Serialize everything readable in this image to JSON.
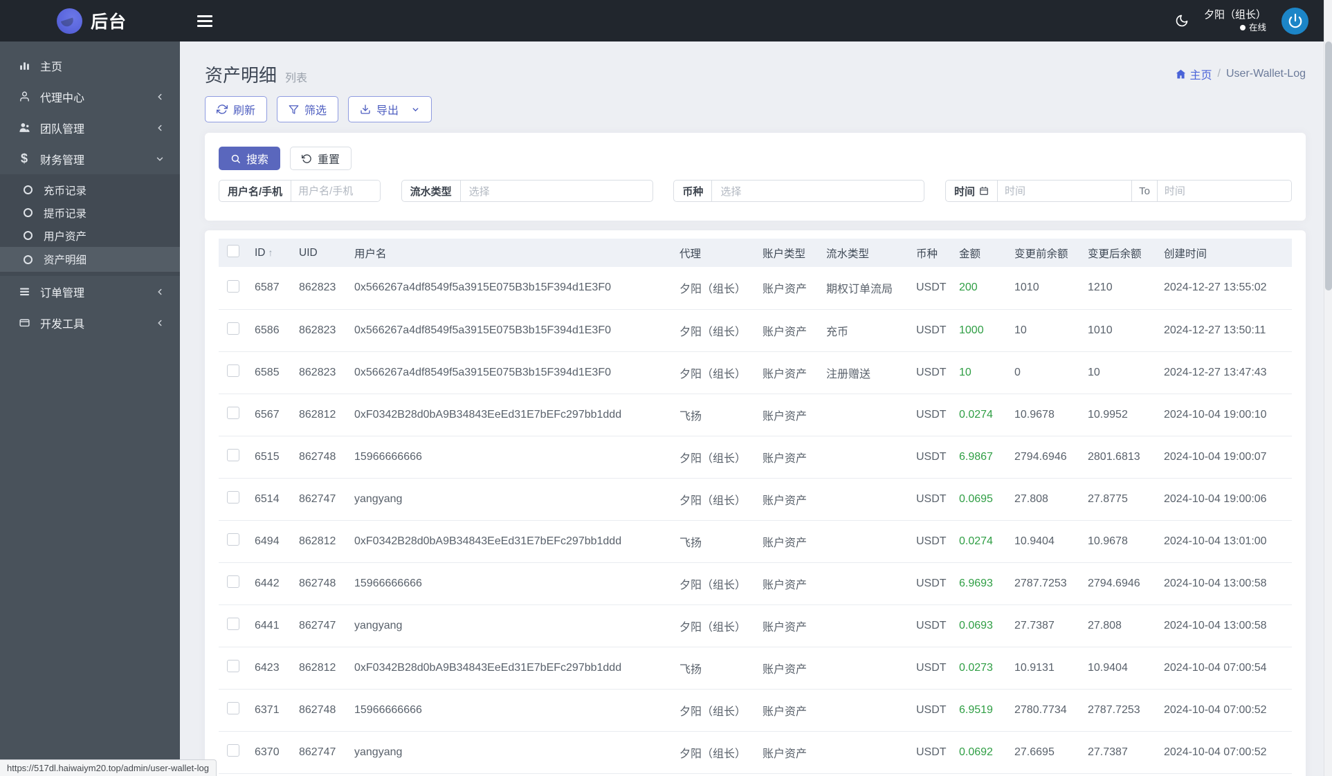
{
  "navbar": {
    "brand": "后台",
    "user_name": "夕阳（组长）",
    "user_status": "在线"
  },
  "sidebar": {
    "home": "主页",
    "agent_center": "代理中心",
    "team_mgmt": "团队管理",
    "finance_mgmt": "财务管理",
    "finance_children": [
      "充币记录",
      "提币记录",
      "用户资产",
      "资产明细"
    ],
    "active_item": "资产明细",
    "order_mgmt": "订单管理",
    "dev_tools": "开发工具"
  },
  "page": {
    "title": "资产明细",
    "subtitle": "列表",
    "breadcrumb": {
      "home": "主页",
      "current": "User-Wallet-Log"
    }
  },
  "toolbar": {
    "refresh": "刷新",
    "filter": "筛选",
    "export": "导出"
  },
  "search": {
    "search_btn": "搜索",
    "reset_btn": "重置",
    "fields": [
      {
        "label": "用户名/手机",
        "placeholder": "用户名/手机",
        "type": "input"
      },
      {
        "label": "流水类型",
        "placeholder": "选择",
        "type": "select"
      },
      {
        "label": "币种",
        "placeholder": "选择",
        "type": "select"
      },
      {
        "label": "时间",
        "placeholder": "时间",
        "to": "To",
        "placeholder2": "时间",
        "type": "daterange"
      }
    ]
  },
  "table": {
    "sort_indicator": "↑",
    "columns": [
      "ID",
      "UID",
      "用户名",
      "代理",
      "账户类型",
      "流水类型",
      "币种",
      "金额",
      "变更前余额",
      "变更后余额",
      "创建时间"
    ],
    "rows": [
      {
        "id": "6587",
        "uid": "862823",
        "username": "0x566267a4df8549f5a3915E075B3b15F394d1E3F0",
        "agent": "夕阳（组长）",
        "account_type": "账户资产",
        "flow_type": "期权订单流局",
        "currency": "USDT",
        "amount": "200",
        "before": "1010",
        "after": "1210",
        "created": "2024-12-27 13:55:02"
      },
      {
        "id": "6586",
        "uid": "862823",
        "username": "0x566267a4df8549f5a3915E075B3b15F394d1E3F0",
        "agent": "夕阳（组长）",
        "account_type": "账户资产",
        "flow_type": "充币",
        "currency": "USDT",
        "amount": "1000",
        "before": "10",
        "after": "1010",
        "created": "2024-12-27 13:50:11"
      },
      {
        "id": "6585",
        "uid": "862823",
        "username": "0x566267a4df8549f5a3915E075B3b15F394d1E3F0",
        "agent": "夕阳（组长）",
        "account_type": "账户资产",
        "flow_type": "注册赠送",
        "currency": "USDT",
        "amount": "10",
        "before": "0",
        "after": "10",
        "created": "2024-12-27 13:47:43"
      },
      {
        "id": "6567",
        "uid": "862812",
        "username": "0xF0342B28d0bA9B34843EeEd31E7bEFc297bb1ddd",
        "agent": "飞扬",
        "account_type": "账户资产",
        "flow_type": "",
        "currency": "USDT",
        "amount": "0.0274",
        "before": "10.9678",
        "after": "10.9952",
        "created": "2024-10-04 19:00:10"
      },
      {
        "id": "6515",
        "uid": "862748",
        "username": "15966666666",
        "agent": "夕阳（组长）",
        "account_type": "账户资产",
        "flow_type": "",
        "currency": "USDT",
        "amount": "6.9867",
        "before": "2794.6946",
        "after": "2801.6813",
        "created": "2024-10-04 19:00:07"
      },
      {
        "id": "6514",
        "uid": "862747",
        "username": "yangyang",
        "agent": "夕阳（组长）",
        "account_type": "账户资产",
        "flow_type": "",
        "currency": "USDT",
        "amount": "0.0695",
        "before": "27.808",
        "after": "27.8775",
        "created": "2024-10-04 19:00:06"
      },
      {
        "id": "6494",
        "uid": "862812",
        "username": "0xF0342B28d0bA9B34843EeEd31E7bEFc297bb1ddd",
        "agent": "飞扬",
        "account_type": "账户资产",
        "flow_type": "",
        "currency": "USDT",
        "amount": "0.0274",
        "before": "10.9404",
        "after": "10.9678",
        "created": "2024-10-04 13:01:00"
      },
      {
        "id": "6442",
        "uid": "862748",
        "username": "15966666666",
        "agent": "夕阳（组长）",
        "account_type": "账户资产",
        "flow_type": "",
        "currency": "USDT",
        "amount": "6.9693",
        "before": "2787.7253",
        "after": "2794.6946",
        "created": "2024-10-04 13:00:58"
      },
      {
        "id": "6441",
        "uid": "862747",
        "username": "yangyang",
        "agent": "夕阳（组长）",
        "account_type": "账户资产",
        "flow_type": "",
        "currency": "USDT",
        "amount": "0.0693",
        "before": "27.7387",
        "after": "27.808",
        "created": "2024-10-04 13:00:58"
      },
      {
        "id": "6423",
        "uid": "862812",
        "username": "0xF0342B28d0bA9B34843EeEd31E7bEFc297bb1ddd",
        "agent": "飞扬",
        "account_type": "账户资产",
        "flow_type": "",
        "currency": "USDT",
        "amount": "0.0273",
        "before": "10.9131",
        "after": "10.9404",
        "created": "2024-10-04 07:00:54"
      },
      {
        "id": "6371",
        "uid": "862748",
        "username": "15966666666",
        "agent": "夕阳（组长）",
        "account_type": "账户资产",
        "flow_type": "",
        "currency": "USDT",
        "amount": "6.9519",
        "before": "2780.7734",
        "after": "2787.7253",
        "created": "2024-10-04 07:00:52"
      },
      {
        "id": "6370",
        "uid": "862747",
        "username": "yangyang",
        "agent": "夕阳（组长）",
        "account_type": "账户资产",
        "flow_type": "",
        "currency": "USDT",
        "amount": "0.0692",
        "before": "27.6695",
        "after": "27.7387",
        "created": "2024-10-04 07:00:52"
      }
    ]
  },
  "statusbar": {
    "url": "https://517dl.haiwaiym20.top/admin/user-wallet-log"
  },
  "colors": {
    "navbar_bg": "#21262d",
    "sidebar_bg": "#49525b",
    "accent_indigo": "#5a67bd",
    "link_blue": "#4a63d8",
    "amount_green": "#2f9e44",
    "avatar_blue": "#1c85c7",
    "logo_purple": "#5b67dd",
    "page_bg": "#edeff3"
  }
}
